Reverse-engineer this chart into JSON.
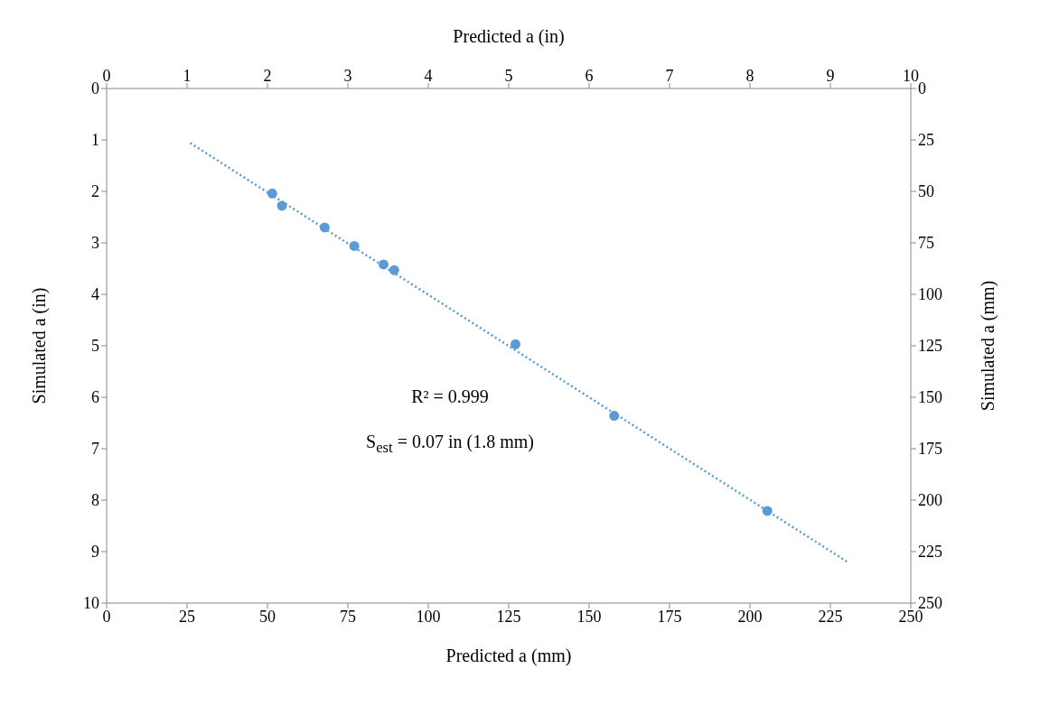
{
  "chart_data": {
    "type": "scatter",
    "xlabel": "Predicted a (mm)",
    "x2label": "Predicted a (in)",
    "ylabel": "Simulated a (in)",
    "y2label": "Simulated a (mm)",
    "xlim": [
      0,
      250
    ],
    "xticks": [
      0,
      25,
      50,
      75,
      100,
      125,
      150,
      175,
      200,
      225,
      250
    ],
    "x2lim": [
      0,
      10
    ],
    "x2ticks": [
      0,
      1,
      2,
      3,
      4,
      5,
      6,
      7,
      8,
      9,
      10
    ],
    "ylim": [
      10,
      0
    ],
    "yticks": [
      0,
      1,
      2,
      3,
      4,
      5,
      6,
      7,
      8,
      9,
      10
    ],
    "y2lim": [
      250,
      0
    ],
    "y2ticks": [
      0,
      25,
      50,
      75,
      100,
      125,
      150,
      175,
      200,
      225,
      250
    ],
    "marker": "circle",
    "series": [
      {
        "color": "#5b9bd5",
        "x": [
          51.5,
          54.5,
          67.8,
          77.0,
          86.1,
          89.4,
          127.1,
          157.8,
          205.4
        ],
        "values": [
          2.04,
          2.28,
          2.7,
          3.06,
          3.42,
          3.53,
          4.97,
          6.36,
          8.21
        ]
      },
      {
        "type": "line",
        "color": "#5b9bd5",
        "marker": "none",
        "line_style": "dotted",
        "x": [
          26.0,
          230.3
        ],
        "values": [
          1.06,
          9.2
        ]
      }
    ],
    "annotations": [
      "R² = 0.999",
      "S$_{est}$ = 0.07 in (1.8 mm)"
    ]
  }
}
